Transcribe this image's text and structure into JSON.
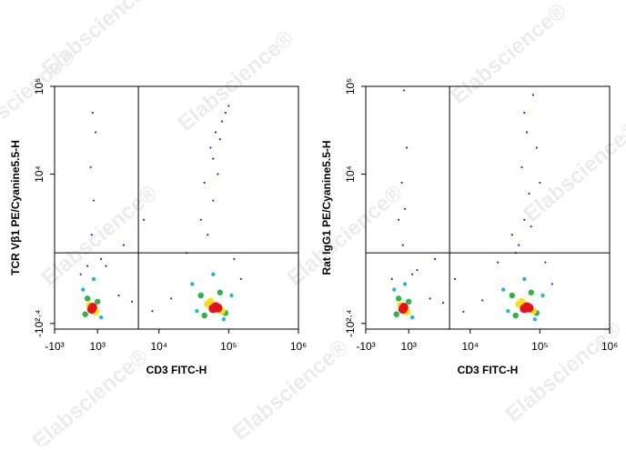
{
  "watermark": "Elabscience®",
  "chart_data": [
    {
      "type": "scatter",
      "y_label": "TCR Vβ1 PE/Cyanine5.5-H",
      "x_label": "CD3 FITC-H",
      "xlim": [
        -1000,
        1000000
      ],
      "ylim": [
        -350,
        100000
      ],
      "xticks": [
        {
          "value": -1000,
          "label": "-10³"
        },
        {
          "value": 1000,
          "label": "10³"
        },
        {
          "value": 10000,
          "label": "10⁴"
        },
        {
          "value": 100000,
          "label": "10⁵"
        },
        {
          "value": 1000000,
          "label": "10⁶"
        }
      ],
      "yticks": [
        {
          "value": -251,
          "label": "-10²·⁴"
        },
        {
          "value": 10000,
          "label": "10⁴"
        },
        {
          "value": 100000,
          "label": "10⁵"
        }
      ],
      "gate": {
        "x": 5000,
        "y": 1200
      },
      "series": [
        {
          "color": "#1a2fd1",
          "x": [
            700,
            800,
            650,
            900,
            750,
            1500,
            2500,
            4000,
            8000,
            15000,
            25000,
            50000,
            60000,
            70000,
            55000,
            65000,
            80000,
            40000,
            90000,
            100000,
            60000,
            75000,
            3000,
            150000,
            1200,
            200,
            500,
            6000,
            45000,
            120000
          ],
          "y": [
            2000,
            5000,
            12000,
            30000,
            50000,
            800,
            200,
            100,
            -50,
            150,
            1200,
            2000,
            5000,
            10000,
            20000,
            30000,
            40000,
            3000,
            50000,
            60000,
            15000,
            25000,
            1500,
            500,
            1000,
            600,
            800,
            3000,
            8000,
            1000
          ]
        },
        {
          "color": "#21b7d9",
          "x": [
            300,
            1200,
            800,
            30000,
            110000,
            60000,
            85000,
            35000
          ],
          "y": [
            300,
            -150,
            500,
            400,
            200,
            600,
            -180,
            -50
          ]
        },
        {
          "color": "#2fb24a",
          "x": [
            500,
            1000,
            400,
            40000,
            90000,
            45000,
            75000
          ],
          "y": [
            150,
            100,
            -100,
            200,
            -80,
            -120,
            250
          ]
        },
        {
          "color": "#f5e11b",
          "x": [
            600,
            900,
            50000,
            80000,
            55000
          ],
          "y": [
            40,
            -60,
            60,
            -50,
            100
          ]
        },
        {
          "color": "#e4131b",
          "x": [
            700,
            750,
            60000,
            65000,
            70000
          ],
          "y": [
            -20,
            10,
            -10,
            20,
            0
          ]
        }
      ]
    },
    {
      "type": "scatter",
      "y_label": "Rat IgG1 PE/Cyanine5.5-H",
      "x_label": "CD3 FITC-H",
      "xlim": [
        -1000,
        1000000
      ],
      "ylim": [
        -350,
        100000
      ],
      "xticks": [
        {
          "value": -1000,
          "label": "-10³"
        },
        {
          "value": 1000,
          "label": "10³"
        },
        {
          "value": 10000,
          "label": "10⁴"
        },
        {
          "value": 100000,
          "label": "10⁵"
        },
        {
          "value": 1000000,
          "label": "10⁶"
        }
      ],
      "yticks": [
        {
          "value": -251,
          "label": "-10²·⁴"
        },
        {
          "value": 10000,
          "label": "10⁴"
        },
        {
          "value": 100000,
          "label": "10⁵"
        }
      ],
      "gate": {
        "x": 5000,
        "y": 1200
      },
      "series": [
        {
          "color": "#1a2fd1",
          "x": [
            700,
            800,
            650,
            900,
            750,
            1500,
            2500,
            4000,
            8000,
            15000,
            25000,
            50000,
            60000,
            70000,
            55000,
            65000,
            80000,
            40000,
            90000,
            100000,
            60000,
            75000,
            3000,
            150000,
            1200,
            200,
            500,
            6000,
            45000,
            120000
          ],
          "y": [
            1500,
            4000,
            8000,
            20000,
            90000,
            700,
            150,
            80,
            -60,
            120,
            900,
            1500,
            3000,
            6000,
            12000,
            30000,
            80000,
            2000,
            20000,
            8000,
            50000,
            2500,
            1000,
            400,
            600,
            500,
            3000,
            500,
            1200,
            900
          ]
        },
        {
          "color": "#21b7d9",
          "x": [
            300,
            1200,
            800,
            30000,
            110000,
            60000,
            85000,
            35000
          ],
          "y": [
            300,
            -150,
            400,
            300,
            200,
            500,
            -180,
            -50
          ]
        },
        {
          "color": "#2fb24a",
          "x": [
            500,
            1000,
            400,
            40000,
            90000,
            45000,
            75000
          ],
          "y": [
            150,
            100,
            -100,
            200,
            -80,
            -120,
            250
          ]
        },
        {
          "color": "#f5e11b",
          "x": [
            600,
            900,
            50000,
            80000,
            55000
          ],
          "y": [
            40,
            -60,
            60,
            -50,
            100
          ]
        },
        {
          "color": "#e4131b",
          "x": [
            700,
            750,
            60000,
            65000,
            70000
          ],
          "y": [
            -20,
            10,
            -10,
            20,
            0
          ]
        }
      ]
    }
  ]
}
